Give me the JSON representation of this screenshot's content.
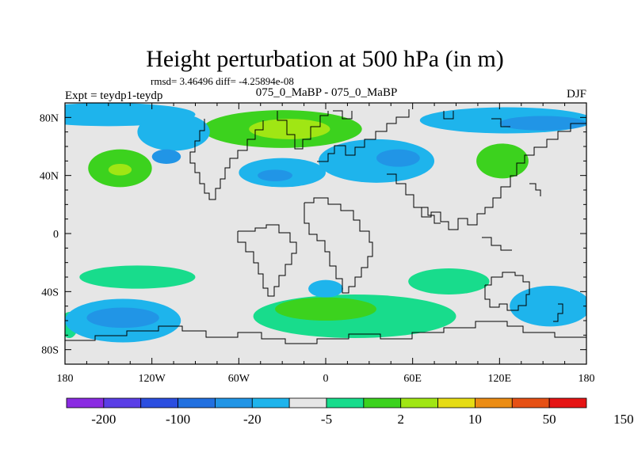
{
  "chart_data": {
    "type": "contour_map",
    "title": "Height perturbation at 500 hPa (in m)",
    "stats_line": "rmsd= 3.46496 diff= -4.25894e-08",
    "left_label": "Expt = teydp1-teydp",
    "center_label": "075_0_MaBP - 075_0_MaBP",
    "right_label": "DJF",
    "xlim": [
      -180,
      180
    ],
    "ylim": [
      -90,
      90
    ],
    "x_ticks": [
      {
        "value": -180,
        "label": "180"
      },
      {
        "value": -120,
        "label": "120W"
      },
      {
        "value": -60,
        "label": "60W"
      },
      {
        "value": 0,
        "label": "0"
      },
      {
        "value": 60,
        "label": "60E"
      },
      {
        "value": 120,
        "label": "120E"
      },
      {
        "value": 180,
        "label": "180"
      }
    ],
    "y_ticks": [
      {
        "value": 80,
        "label": "80N"
      },
      {
        "value": 40,
        "label": "40N"
      },
      {
        "value": 0,
        "label": "0"
      },
      {
        "value": -40,
        "label": "40S"
      },
      {
        "value": -80,
        "label": "80S"
      }
    ],
    "colorbar": {
      "colors": [
        "#8a2be2",
        "#5a3ee6",
        "#2b4ee0",
        "#2170e0",
        "#2195e6",
        "#1eb4ec",
        "#e6e6e6",
        "#18dc8c",
        "#3cd21e",
        "#a0e614",
        "#e6dc14",
        "#eb8c14",
        "#e65014",
        "#e61414"
      ],
      "labels": [
        {
          "index": 1,
          "label": "-200"
        },
        {
          "index": 3,
          "label": "-100"
        },
        {
          "index": 5,
          "label": "-20"
        },
        {
          "index": 7,
          "label": "-5"
        },
        {
          "index": 9,
          "label": "2"
        },
        {
          "index": 11,
          "label": "10"
        },
        {
          "index": 13,
          "label": "50"
        },
        {
          "index": 15,
          "label": "150"
        }
      ]
    },
    "anomaly_regions": [
      {
        "name": "positive-n-atlantic-europe",
        "lon": -30,
        "lat": 72,
        "rlon": 55,
        "rlat": 13,
        "level": 8
      },
      {
        "name": "positive-n-atlantic-core",
        "lon": -25,
        "lat": 72,
        "rlon": 28,
        "rlat": 7,
        "level": 9
      },
      {
        "name": "positive-n-pacific",
        "lon": -142,
        "lat": 45,
        "rlon": 22,
        "rlat": 13,
        "level": 8
      },
      {
        "name": "positive-n-pacific-core",
        "lon": -142,
        "lat": 44,
        "rlon": 8,
        "rlat": 4,
        "level": 9
      },
      {
        "name": "positive-e-asia",
        "lon": 122,
        "lat": 50,
        "rlon": 18,
        "rlat": 12,
        "level": 8
      },
      {
        "name": "positive-southern-ocean",
        "lon": 20,
        "lat": -57,
        "rlon": 70,
        "rlat": 15,
        "level": 7
      },
      {
        "name": "positive-southern-ocean-core",
        "lon": 0,
        "lat": -52,
        "rlon": 35,
        "rlat": 8,
        "level": 8
      },
      {
        "name": "positive-s-pacific",
        "lon": -130,
        "lat": -30,
        "rlon": 40,
        "rlat": 8,
        "level": 7
      },
      {
        "name": "positive-s-indian",
        "lon": 85,
        "lat": -33,
        "rlon": 28,
        "rlat": 9,
        "level": 7
      },
      {
        "name": "positive-sw-edge",
        "lon": -177,
        "lat": -63,
        "rlon": 6,
        "rlat": 9,
        "level": 7
      },
      {
        "name": "negative-arctic-pacific",
        "lon": -150,
        "lat": 82,
        "rlon": 60,
        "rlat": 8,
        "level": 5
      },
      {
        "name": "negative-n-canada",
        "lon": -105,
        "lat": 70,
        "rlon": 25,
        "rlat": 13,
        "level": 5
      },
      {
        "name": "negative-n-canada-core",
        "lon": -110,
        "lat": 53,
        "rlon": 10,
        "rlat": 5,
        "level": 4
      },
      {
        "name": "negative-n-atlantic-midlat",
        "lon": -30,
        "lat": 42,
        "rlon": 30,
        "rlat": 10,
        "level": 5
      },
      {
        "name": "negative-n-atlantic-core",
        "lon": -35,
        "lat": 40,
        "rlon": 12,
        "rlat": 4,
        "level": 4
      },
      {
        "name": "negative-europe-asia",
        "lon": 35,
        "lat": 50,
        "rlon": 40,
        "rlat": 15,
        "level": 5
      },
      {
        "name": "negative-europe-asia-core",
        "lon": 50,
        "lat": 52,
        "rlon": 15,
        "rlat": 6,
        "level": 4
      },
      {
        "name": "negative-arctic-siberia",
        "lon": 125,
        "lat": 78,
        "rlon": 60,
        "rlat": 9,
        "level": 5
      },
      {
        "name": "negative-arctic-siberia-core",
        "lon": 150,
        "lat": 76,
        "rlon": 30,
        "rlat": 5,
        "level": 4
      },
      {
        "name": "negative-s-pacific",
        "lon": -140,
        "lat": -60,
        "rlon": 40,
        "rlat": 15,
        "level": 5
      },
      {
        "name": "negative-s-pacific-core",
        "lon": -140,
        "lat": -58,
        "rlon": 25,
        "rlat": 7,
        "level": 4
      },
      {
        "name": "negative-s-atlantic",
        "lon": 0,
        "lat": -38,
        "rlon": 12,
        "rlat": 6,
        "level": 5
      },
      {
        "name": "negative-s-indian",
        "lon": 155,
        "lat": -50,
        "rlon": 28,
        "rlat": 14,
        "level": 5
      }
    ]
  }
}
